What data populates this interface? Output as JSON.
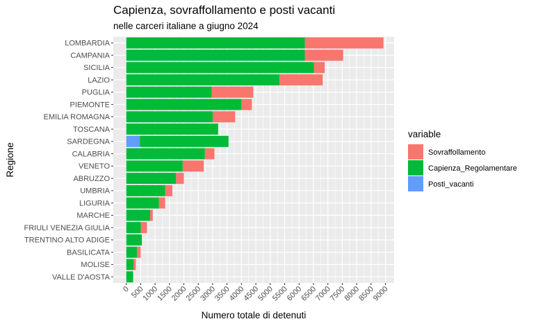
{
  "chart_data": {
    "type": "bar",
    "orientation": "horizontal",
    "stacked": true,
    "title": "Capienza, sovraffollamento e posti vacanti",
    "subtitle": "nelle carceri italiane a giugno 2024",
    "xlabel": "Numero totale di detenuti",
    "ylabel": "Regione",
    "xlim": [
      -450,
      9300
    ],
    "xticks": [
      0,
      500,
      1000,
      1500,
      2000,
      2500,
      3000,
      3500,
      4000,
      4500,
      5000,
      5500,
      6000,
      6500,
      7000,
      7500,
      8000,
      8500,
      9000
    ],
    "grid": true,
    "legend_title": "variable",
    "legend_position": "right",
    "categories": [
      "LOMBARDIA",
      "CAMPANIA",
      "SICILIA",
      "LAZIO",
      "PUGLIA",
      "PIEMONTE",
      "EMILIA ROMAGNA",
      "TOSCANA",
      "SARDEGNA",
      "CALABRIA",
      "VENETO",
      "ABRUZZO",
      "UMBRIA",
      "LIGURIA",
      "MARCHE",
      "FRIULI VENEZIA GIULIA",
      "TRENTINO ALTO ADIGE",
      "BASILICATA",
      "MOLISE",
      "VALLE D'AOSTA"
    ],
    "series": [
      {
        "name": "Sovraffollamento",
        "color": "#F8766D",
        "values": [
          2730,
          1330,
          370,
          1500,
          1440,
          360,
          780,
          0,
          0,
          330,
          730,
          270,
          250,
          220,
          90,
          210,
          0,
          130,
          80,
          0
        ]
      },
      {
        "name": "Capienza_Regolamentare",
        "color": "#00BA38",
        "values": [
          6200,
          6200,
          6520,
          5320,
          2970,
          4000,
          3000,
          3190,
          3080,
          2730,
          1960,
          1730,
          1350,
          1130,
          830,
          510,
          540,
          370,
          250,
          240
        ]
      },
      {
        "name": "Posti_vacanti",
        "color": "#619CFF",
        "values": [
          0,
          0,
          0,
          0,
          0,
          0,
          0,
          0,
          470,
          0,
          0,
          0,
          0,
          0,
          0,
          0,
          0,
          0,
          0,
          0
        ]
      }
    ],
    "stack_order_left_to_right": [
      "Posti_vacanti",
      "Capienza_Regolamentare",
      "Sovraffollamento"
    ]
  }
}
